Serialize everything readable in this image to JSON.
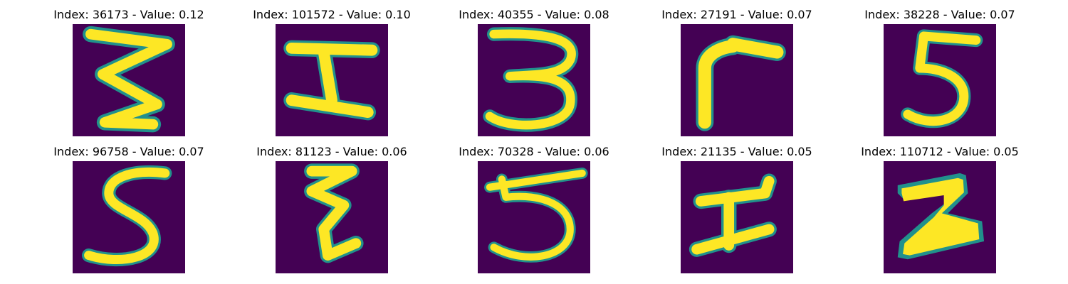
{
  "colors": {
    "background": "#440154",
    "stroke": "#fde725",
    "stroke_edge": "#21918c"
  },
  "panels": [
    {
      "title": "Index: 36173 - Value: 0.12",
      "glyph": "3 (pointed)"
    },
    {
      "title": "Index: 101572 - Value: 0.10",
      "glyph": "I (serif)"
    },
    {
      "title": "Index: 40355 - Value: 0.08",
      "glyph": "3"
    },
    {
      "title": "Index: 27191 - Value: 0.07",
      "glyph": "r"
    },
    {
      "title": "Index: 38228 - Value: 0.07",
      "glyph": "5"
    },
    {
      "title": "Index: 96758 - Value: 0.07",
      "glyph": "5 (curved)"
    },
    {
      "title": "Index: 81123 - Value: 0.06",
      "glyph": "zigzag"
    },
    {
      "title": "Index: 70328 - Value: 0.06",
      "glyph": "5 (wide)"
    },
    {
      "title": "Index: 21135 - Value: 0.05",
      "glyph": "I (slanted)"
    },
    {
      "title": "Index: 110712 - Value: 0.05",
      "glyph": "2 (bold)"
    }
  ]
}
